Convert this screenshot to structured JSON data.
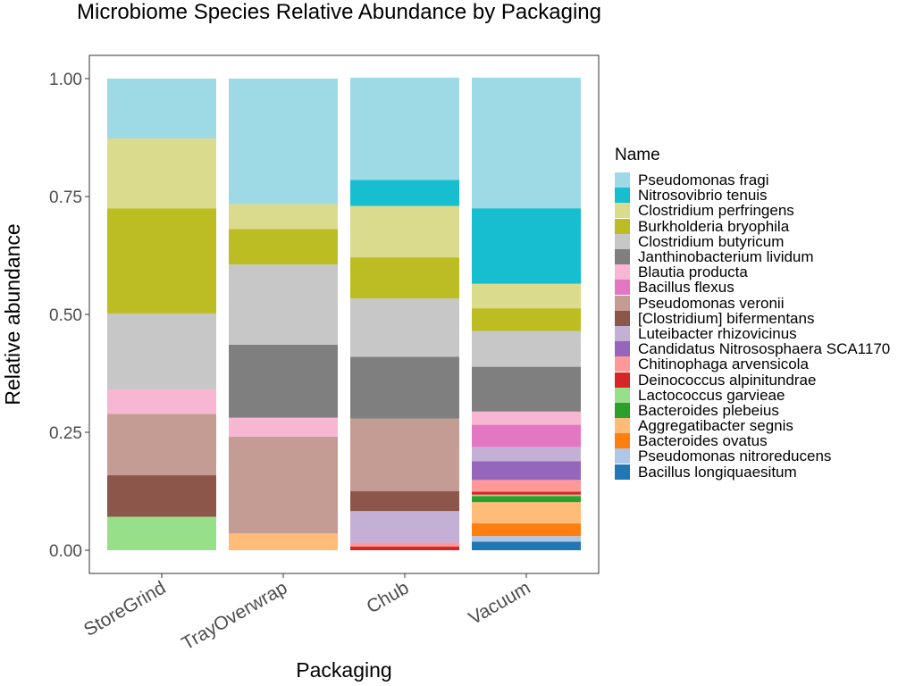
{
  "chart_data": {
    "type": "bar",
    "stacked": true,
    "title": "Microbiome Species Relative Abundance by Packaging",
    "xlabel": "Packaging",
    "ylabel": "Relative abundance",
    "ylim": [
      0,
      1
    ],
    "yticks": [
      "0.00",
      "0.25",
      "0.50",
      "0.75",
      "1.00"
    ],
    "ytick_values": [
      0,
      0.25,
      0.5,
      0.75,
      1.0
    ],
    "categories": [
      "StoreGrind",
      "TrayOverwrap",
      "Chub",
      "Vacuum"
    ],
    "legend": {
      "title": "Name",
      "position": "right"
    },
    "grid": false,
    "series": [
      {
        "name": "Pseudomonas fragi",
        "color": "#9EDAE5",
        "values": [
          0.127,
          0.266,
          0.217,
          0.277
        ]
      },
      {
        "name": "Nitrosovibrio tenuis",
        "color": "#17BECF",
        "values": [
          0,
          0,
          0.055,
          0.16
        ]
      },
      {
        "name": "Clostridium perfringens",
        "color": "#DBDB8D",
        "values": [
          0.148,
          0.053,
          0.109,
          0.052
        ]
      },
      {
        "name": "Burkholderia bryophila",
        "color": "#BCBD22",
        "values": [
          0.223,
          0.075,
          0.087,
          0.048
        ]
      },
      {
        "name": "Clostridium butyricum",
        "color": "#C7C7C7",
        "values": [
          0.161,
          0.17,
          0.124,
          0.076
        ]
      },
      {
        "name": "Janthinobacterium lividum",
        "color": "#7F7F7F",
        "values": [
          0,
          0.155,
          0.131,
          0.095
        ]
      },
      {
        "name": "Blautia producta",
        "color": "#F7B6D2",
        "values": [
          0.052,
          0.04,
          0,
          0.028
        ]
      },
      {
        "name": "Bacillus flexus",
        "color": "#E377C2",
        "values": [
          0,
          0,
          0,
          0.047
        ]
      },
      {
        "name": "Pseudomonas veronii",
        "color": "#C49C94",
        "values": [
          0.13,
          0.205,
          0.154,
          0
        ]
      },
      {
        "name": "[Clostridium] bifermentans",
        "color": "#8C564B",
        "values": [
          0.088,
          0,
          0.042,
          0
        ]
      },
      {
        "name": "Luteibacter rhizovicinus",
        "color": "#C5B0D5",
        "values": [
          0,
          0,
          0.067,
          0.03
        ]
      },
      {
        "name": "Candidatus Nitrososphaera SCA1170",
        "color": "#9467BD",
        "values": [
          0,
          0,
          0,
          0.04
        ]
      },
      {
        "name": "Chitinophaga arvensicola",
        "color": "#FF9896",
        "values": [
          0,
          0,
          0.008,
          0.025
        ]
      },
      {
        "name": "Deinococcus alpinitundrae",
        "color": "#D62728",
        "values": [
          0,
          0,
          0.008,
          0.006
        ]
      },
      {
        "name": "Lactococcus garvieae",
        "color": "#98DF8A",
        "values": [
          0.071,
          0,
          0,
          0.003
        ]
      },
      {
        "name": "Bacteroides plebeius",
        "color": "#2CA02C",
        "values": [
          0,
          0,
          0,
          0.013
        ]
      },
      {
        "name": "Aggregatibacter segnis",
        "color": "#FFBB78",
        "values": [
          0,
          0.036,
          0,
          0.045
        ]
      },
      {
        "name": "Bacteroides ovatus",
        "color": "#FF7F0E",
        "values": [
          0,
          0,
          0,
          0.027
        ]
      },
      {
        "name": "Pseudomonas nitroreducens",
        "color": "#AEC7E8",
        "values": [
          0,
          0,
          0,
          0.012
        ]
      },
      {
        "name": "Bacillus longiquaesitum",
        "color": "#1F77B4",
        "values": [
          0,
          0,
          0,
          0.018
        ]
      }
    ]
  }
}
